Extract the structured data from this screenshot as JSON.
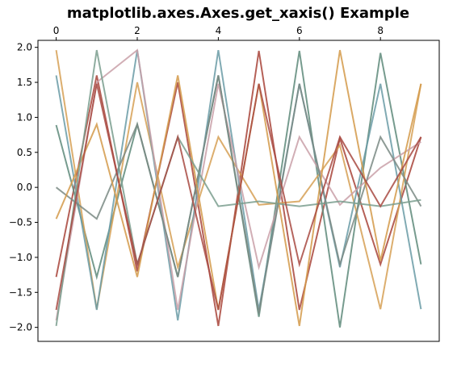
{
  "chart_data": {
    "type": "line",
    "title": "matplotlib.axes.Axes.get_xaxis() Example",
    "xlabel": "",
    "ylabel": "",
    "xlim": [
      -0.45,
      9.45
    ],
    "ylim": [
      -2.2,
      2.1
    ],
    "x_axis_position": "top",
    "grid": false,
    "legend": "none",
    "x_ticks": [
      0,
      2,
      4,
      6,
      8
    ],
    "x_tick_labels": [
      "0",
      "2",
      "4",
      "6",
      "8"
    ],
    "y_ticks": [
      2.0,
      1.5,
      1.0,
      0.5,
      0.0,
      -0.5,
      -1.0,
      -1.5,
      -2.0
    ],
    "y_tick_labels": [
      "2.0",
      "1.5",
      "1.0",
      "0.5",
      "0.0",
      "−0.5",
      "−1.0",
      "−1.5",
      "−2.0"
    ],
    "x": [
      0,
      1,
      2,
      3,
      4,
      5,
      6,
      7,
      8,
      9
    ],
    "series": [
      {
        "color": "#a8443a",
        "values": [
          -1.28,
          1.6,
          -1.2,
          1.5,
          -1.98,
          1.95,
          -1.75,
          0.7,
          -1.1,
          0.72
        ]
      },
      {
        "color": "#5e8a7a",
        "values": [
          0.89,
          -1.28,
          0.9,
          -1.28,
          1.6,
          -1.85,
          1.95,
          -2.0,
          1.92,
          -1.1
        ]
      },
      {
        "color": "#d6a055",
        "values": [
          1.96,
          -1.74,
          1.5,
          -1.14,
          0.72,
          -0.25,
          -0.2,
          0.6,
          -1.74,
          1.48
        ]
      },
      {
        "color": "#6a9ba6",
        "values": [
          1.6,
          -1.75,
          1.96,
          -1.9,
          1.96,
          -1.75,
          1.48,
          -1.14,
          1.48,
          -1.74
        ]
      },
      {
        "color": "#c9a0a8",
        "values": [
          -1.9,
          1.5,
          1.96,
          -1.75,
          1.48,
          -1.14,
          0.72,
          -0.25,
          0.28,
          0.65
        ]
      },
      {
        "color": "#7a8a84",
        "values": [
          0.0,
          -0.45,
          0.9,
          -1.28,
          1.6,
          -1.8,
          1.48,
          -1.1,
          0.72,
          -0.27
        ]
      },
      {
        "color": "#d39a4a",
        "values": [
          -0.45,
          0.9,
          -1.28,
          1.6,
          -1.75,
          1.48,
          -1.98,
          1.96,
          -1.05,
          1.48
        ]
      },
      {
        "color": "#7a9e8e",
        "values": [
          -1.98,
          1.96,
          -1.1,
          0.72,
          -0.27,
          -0.2,
          -0.27,
          -0.2,
          -0.27,
          -0.18
        ]
      },
      {
        "color": "#a84a42",
        "values": [
          -1.75,
          1.48,
          -1.1,
          0.72,
          -1.75,
          1.48,
          -1.1,
          0.72,
          -0.27,
          0.72
        ]
      }
    ]
  }
}
